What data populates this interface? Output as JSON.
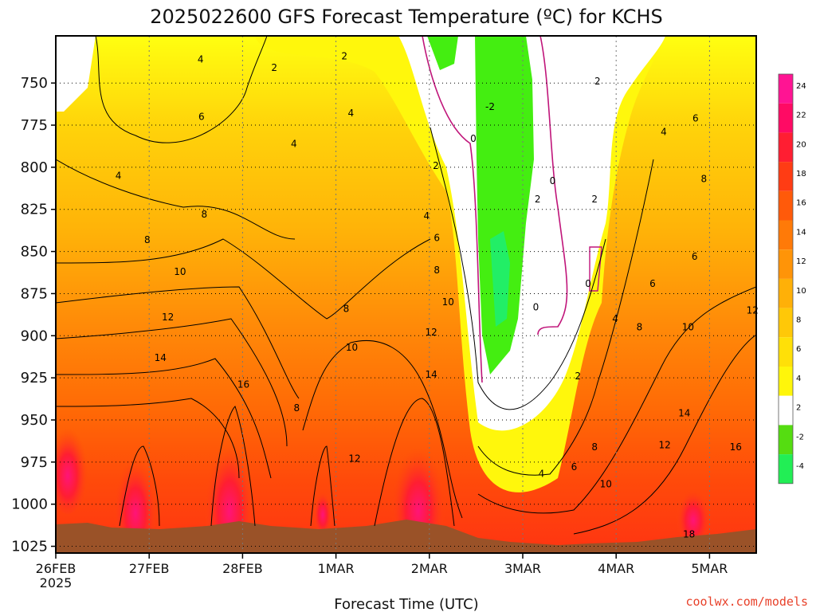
{
  "chart_data": {
    "type": "heatmap",
    "title": "2025022600 GFS Forecast Temperature (ºC) for KCHS",
    "xlabel": "Forecast Time (UTC)",
    "ylabel": "",
    "x_ticks": [
      "26FEB",
      "27FEB",
      "28FEB",
      "1MAR",
      "2MAR",
      "3MAR",
      "4MAR",
      "5MAR"
    ],
    "x_tick_year": "2025",
    "x_range_days": [
      0,
      7.5
    ],
    "y_ticks": [
      750,
      775,
      800,
      825,
      850,
      875,
      900,
      925,
      950,
      975,
      1000,
      1025
    ],
    "y_range_hPa": [
      722,
      1029
    ],
    "y_scale": "pressure (increasing downward)",
    "colorbar_ticks": [
      24,
      22,
      20,
      18,
      16,
      14,
      12,
      10,
      8,
      6,
      4,
      2,
      -2,
      -4
    ],
    "colorbar_colors": [
      "#ff1493",
      "#ff0a64",
      "#ff1e32",
      "#ff3c14",
      "#ff5a0a",
      "#ff7a08",
      "#ff9408",
      "#ffb008",
      "#ffc808",
      "#ffe008",
      "#fff60a",
      "#ffffff",
      "#55dd11",
      "#22ee55"
    ],
    "contour_labels": [
      {
        "value": "4",
        "t": 1.55,
        "p": 736
      },
      {
        "value": "2",
        "t": 2.34,
        "p": 741
      },
      {
        "value": "2",
        "t": 3.09,
        "p": 734
      },
      {
        "value": "6",
        "t": 1.56,
        "p": 770
      },
      {
        "value": "4",
        "t": 3.16,
        "p": 768
      },
      {
        "value": "4",
        "t": 2.55,
        "p": 786
      },
      {
        "value": "4",
        "t": 0.67,
        "p": 805
      },
      {
        "value": "2",
        "t": 4.07,
        "p": 799
      },
      {
        "value": "-2",
        "t": 4.65,
        "p": 764
      },
      {
        "value": "0",
        "t": 4.47,
        "p": 783
      },
      {
        "value": "0",
        "t": 5.32,
        "p": 808
      },
      {
        "value": "2",
        "t": 5.16,
        "p": 819
      },
      {
        "value": "2",
        "t": 5.77,
        "p": 819
      },
      {
        "value": "2",
        "t": 5.8,
        "p": 749
      },
      {
        "value": "4",
        "t": 6.51,
        "p": 779
      },
      {
        "value": "6",
        "t": 6.85,
        "p": 771
      },
      {
        "value": "8",
        "t": 6.94,
        "p": 807
      },
      {
        "value": "4",
        "t": 3.97,
        "p": 829
      },
      {
        "value": "8",
        "t": 1.59,
        "p": 828
      },
      {
        "value": "8",
        "t": 0.98,
        "p": 843
      },
      {
        "value": "6",
        "t": 4.08,
        "p": 842
      },
      {
        "value": "10",
        "t": 1.33,
        "p": 862
      },
      {
        "value": "8",
        "t": 4.08,
        "p": 861
      },
      {
        "value": "6",
        "t": 6.84,
        "p": 853
      },
      {
        "value": "6",
        "t": 6.39,
        "p": 869
      },
      {
        "value": "0",
        "t": 5.7,
        "p": 869
      },
      {
        "value": "10",
        "t": 4.2,
        "p": 880
      },
      {
        "value": "0",
        "t": 5.14,
        "p": 883
      },
      {
        "value": "8",
        "t": 3.11,
        "p": 884
      },
      {
        "value": "12",
        "t": 1.2,
        "p": 889
      },
      {
        "value": "4",
        "t": 5.99,
        "p": 890
      },
      {
        "value": "8",
        "t": 6.25,
        "p": 895
      },
      {
        "value": "10",
        "t": 6.77,
        "p": 895
      },
      {
        "value": "12",
        "t": 7.46,
        "p": 885
      },
      {
        "value": "12",
        "t": 4.02,
        "p": 898
      },
      {
        "value": "10",
        "t": 3.17,
        "p": 907
      },
      {
        "value": "14",
        "t": 1.12,
        "p": 913
      },
      {
        "value": "14",
        "t": 4.02,
        "p": 923
      },
      {
        "value": "2",
        "t": 5.59,
        "p": 924
      },
      {
        "value": "16",
        "t": 2.01,
        "p": 929
      },
      {
        "value": "8",
        "t": 2.58,
        "p": 943
      },
      {
        "value": "14",
        "t": 6.73,
        "p": 946
      },
      {
        "value": "8",
        "t": 5.77,
        "p": 966
      },
      {
        "value": "12",
        "t": 6.52,
        "p": 965
      },
      {
        "value": "16",
        "t": 7.28,
        "p": 966
      },
      {
        "value": "12",
        "t": 3.2,
        "p": 973
      },
      {
        "value": "6",
        "t": 5.55,
        "p": 978
      },
      {
        "value": "4",
        "t": 5.2,
        "p": 982
      },
      {
        "value": "10",
        "t": 5.89,
        "p": 988
      },
      {
        "value": "18",
        "t": 6.78,
        "p": 1018
      }
    ]
  },
  "credit": "coolwx.com/models",
  "colors": {
    "ground": "#9a5228",
    "freezing_contour": "#c0157a",
    "contour": "#000000"
  }
}
